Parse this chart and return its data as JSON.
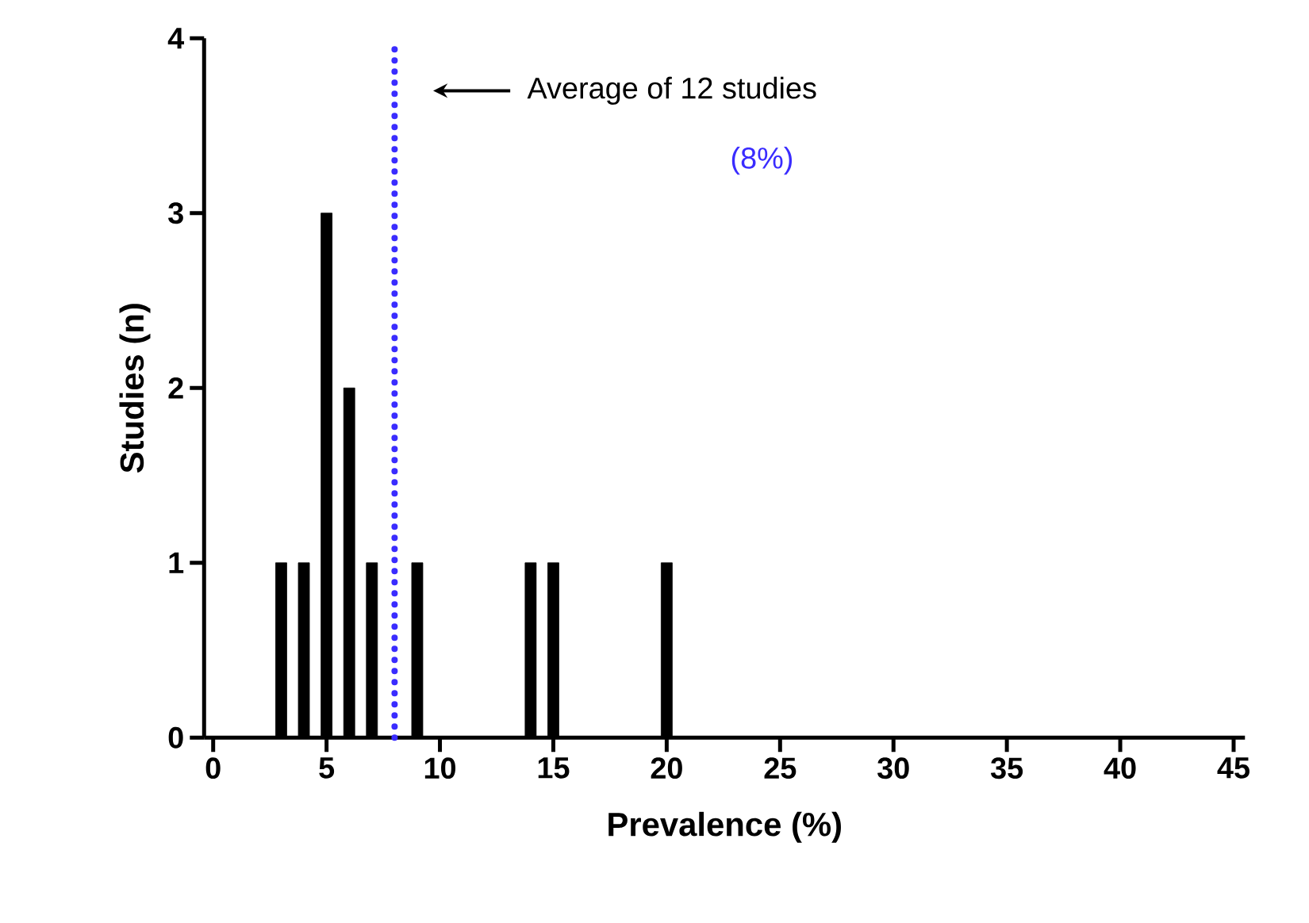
{
  "chart_data": {
    "type": "bar",
    "xlabel": "Prevalence (%)",
    "ylabel": "Studies (n)",
    "x": [
      3,
      4,
      5,
      6,
      7,
      9,
      14,
      15,
      20
    ],
    "values": [
      1,
      1,
      3,
      2,
      1,
      1,
      1,
      1,
      1
    ],
    "color": "#000000",
    "xlim": [
      -0.4,
      45.5
    ],
    "ylim": [
      0,
      4
    ],
    "xticks": [
      0,
      5,
      10,
      15,
      20,
      25,
      30,
      35,
      40,
      45
    ],
    "yticks": [
      0,
      1,
      2,
      3,
      4
    ],
    "ref_lines": [
      {
        "axis": "x",
        "value": 8,
        "label": "(8%)",
        "color": "#3a2cff",
        "line_style": "dotted"
      }
    ],
    "annotations": [
      "Average of 12 studies"
    ],
    "grid": false
  }
}
